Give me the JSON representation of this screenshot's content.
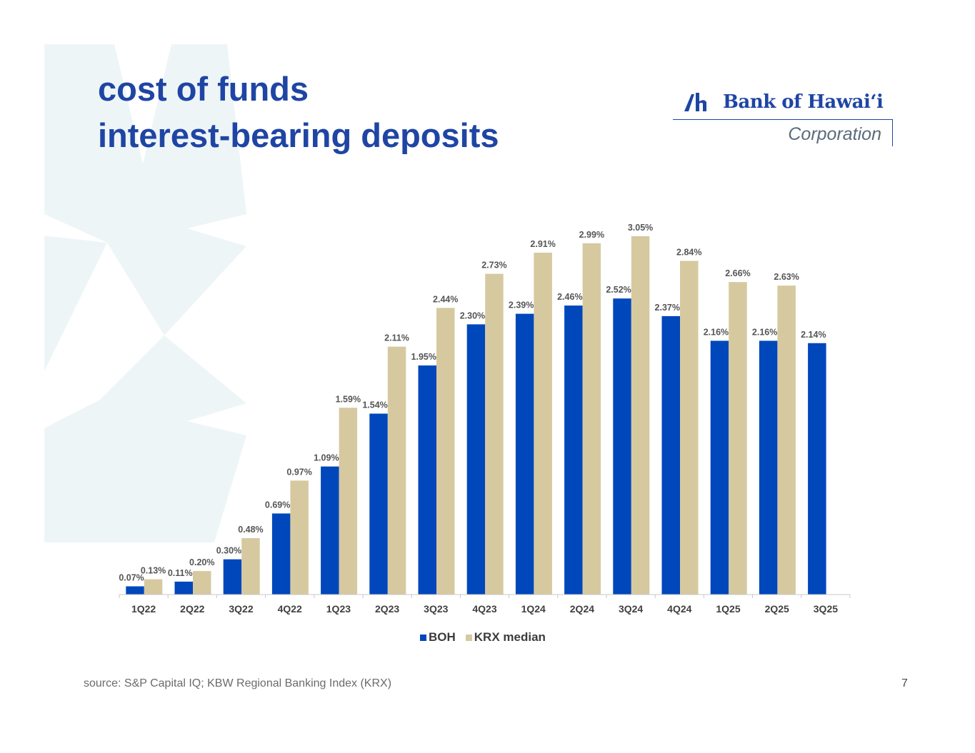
{
  "title_lines": [
    "cost of funds",
    "interest-bearing deposits"
  ],
  "logo": {
    "name": "Bank of Hawaiʻi",
    "sub": "Corporation"
  },
  "source": "source: S&P Capital IQ; KBW Regional Banking Index (KRX)",
  "page_number": "7",
  "colors": {
    "title": "#1f45a4",
    "boh": "#0047bb",
    "krx": "#d6c9a0",
    "watermark": "#eef5f7"
  },
  "chart_data": {
    "type": "bar",
    "categories": [
      "1Q22",
      "2Q22",
      "3Q22",
      "4Q22",
      "1Q23",
      "2Q23",
      "3Q23",
      "4Q23",
      "1Q24",
      "2Q24",
      "3Q24",
      "4Q24",
      "1Q25",
      "2Q25",
      "3Q25"
    ],
    "series": [
      {
        "name": "BOH",
        "color": "#0047bb",
        "values": [
          0.07,
          0.11,
          0.3,
          0.69,
          1.09,
          1.54,
          1.95,
          2.3,
          2.39,
          2.46,
          2.52,
          2.37,
          2.16,
          2.16,
          2.14
        ],
        "labels": [
          "0.07%",
          "0.11%",
          "0.30%",
          "0.69%",
          "1.09%",
          "1.54%",
          "1.95%",
          "2.30%",
          "2.39%",
          "2.46%",
          "2.52%",
          "2.37%",
          "2.16%",
          "2.16%",
          "2.14%"
        ]
      },
      {
        "name": "KRX median",
        "color": "#d6c9a0",
        "values": [
          0.13,
          0.2,
          0.48,
          0.97,
          1.59,
          2.11,
          2.44,
          2.73,
          2.91,
          2.99,
          3.05,
          2.84,
          2.66,
          2.63,
          null
        ],
        "labels": [
          "0.13%",
          "0.20%",
          "0.48%",
          "0.97%",
          "1.59%",
          "2.11%",
          "2.44%",
          "2.73%",
          "2.91%",
          "2.99%",
          "3.05%",
          "2.84%",
          "2.66%",
          "2.63%",
          null
        ]
      }
    ],
    "ylim": [
      0,
      3.05
    ],
    "grid": false,
    "legend": "bottom-center"
  }
}
